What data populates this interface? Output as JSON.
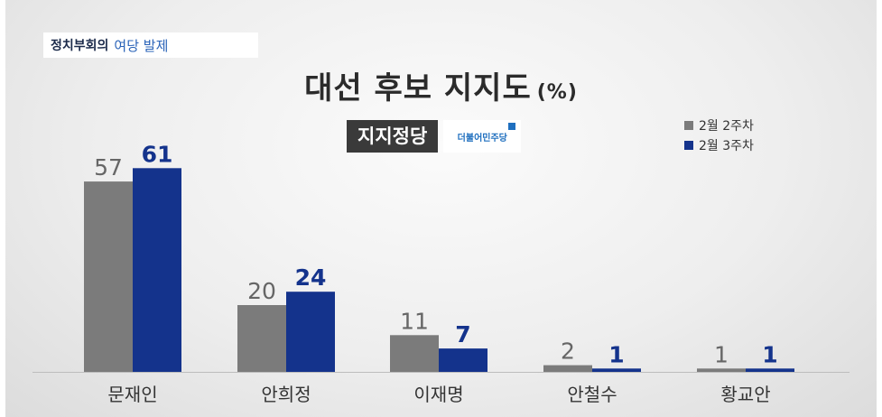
{
  "header": {
    "program": "정치부회의",
    "topic": "여당 발제"
  },
  "party": {
    "label": "지지정당",
    "logo_text": "더불어민주당"
  },
  "colors": {
    "prev": "#7b7b7b",
    "curr": "#14338c",
    "prev_label": "#666666",
    "curr_label": "#14338c"
  },
  "chart_data": {
    "type": "bar",
    "title": "대선 후보 지지도",
    "unit": "(%)",
    "categories": [
      "문재인",
      "안희정",
      "이재명",
      "안철수",
      "황교안"
    ],
    "series": [
      {
        "name": "2월 2주차",
        "values": [
          57,
          20,
          11,
          2,
          1
        ]
      },
      {
        "name": "2월 3주차",
        "values": [
          61,
          24,
          7,
          1,
          1
        ]
      }
    ],
    "legend_position": "top-right",
    "grid": false
  }
}
